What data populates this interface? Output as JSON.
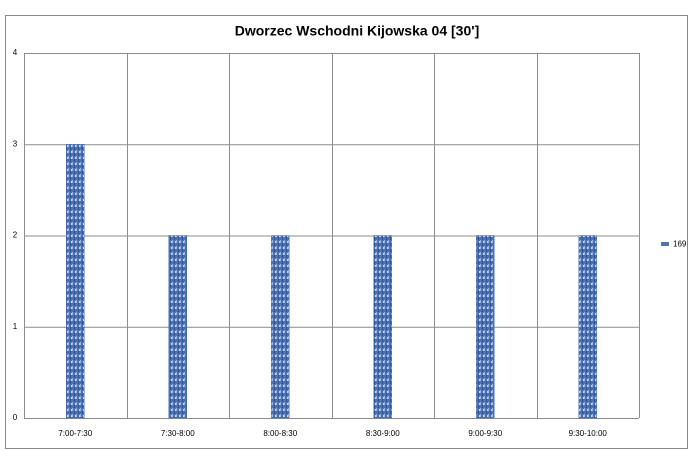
{
  "chart_data": {
    "type": "bar",
    "title": "Dworzec Wschodni Kijowska 04 [30']",
    "categories": [
      "7:00-7:30",
      "7:30-8:00",
      "8:00-8:30",
      "8:30-9:00",
      "9:00-9:30",
      "9:30-10:00"
    ],
    "series": [
      {
        "name": "169",
        "color": "#4a72b8",
        "values": [
          3,
          2,
          2,
          2,
          2,
          2
        ]
      }
    ],
    "ylim": [
      0,
      4
    ],
    "yticks": [
      0,
      1,
      2,
      3,
      4
    ],
    "grid": true,
    "legend": "right"
  }
}
